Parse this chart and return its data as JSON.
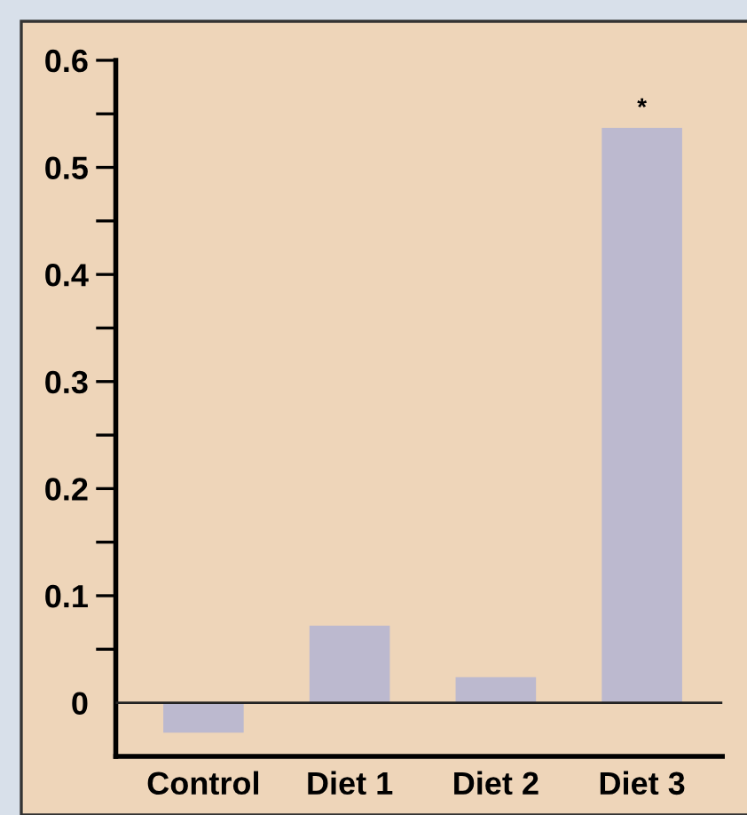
{
  "chart_data": {
    "type": "bar",
    "categories": [
      "Control",
      "Diet 1",
      "Diet 2",
      "Diet 3"
    ],
    "values": [
      -0.028,
      0.072,
      0.024,
      0.537
    ],
    "color": "#bcb9cf",
    "ylim": [
      -0.05,
      0.6
    ],
    "yticks": [
      0,
      {
        "value": 0.05,
        "label": null
      },
      0.1,
      {
        "value": 0.15,
        "label": null
      },
      0.2,
      {
        "value": 0.25,
        "label": null
      },
      0.3,
      {
        "value": 0.35,
        "label": null
      },
      0.4,
      {
        "value": 0.45,
        "label": null
      },
      0.5,
      {
        "value": 0.55,
        "label": null
      },
      0.6
    ],
    "ref_lines": [
      {
        "axis": "y",
        "value": 0,
        "label": null,
        "color": "#222222"
      }
    ],
    "annotations": [
      {
        "text": "*",
        "x": "Diet 3",
        "y": 0.537
      }
    ],
    "grid": false
  }
}
